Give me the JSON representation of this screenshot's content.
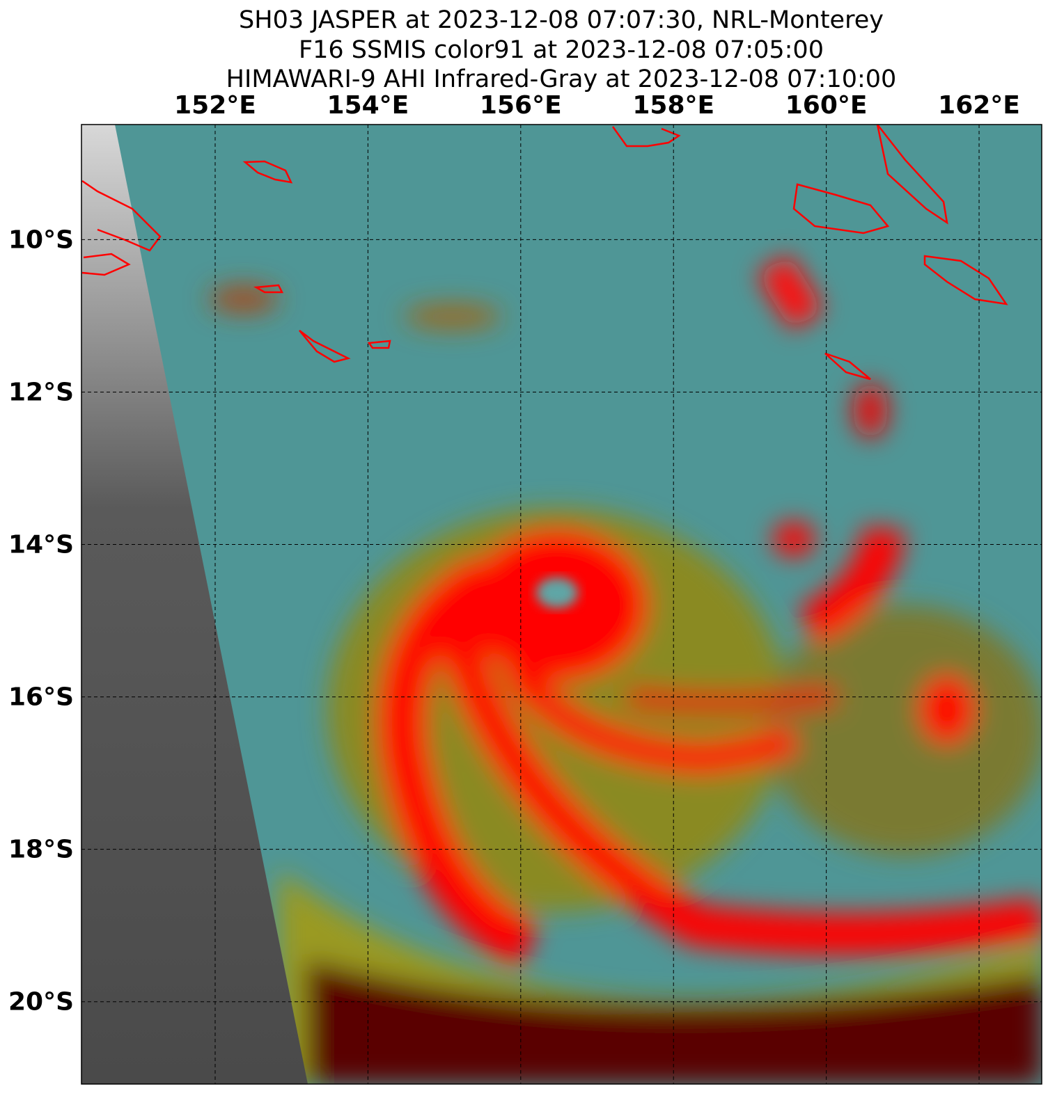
{
  "title": [
    "SH03 JASPER at 2023-12-08 07:07:30, NRL-Monterey",
    "F16 SSMIS color91 at 2023-12-08 07:05:00",
    "HIMAWARI-9 AHI Infrared-Gray at 2023-12-08 07:10:00"
  ],
  "map": {
    "xlim": [
      150.25,
      162.82
    ],
    "ylim": [
      -21.08,
      -8.49
    ],
    "xticks": [
      {
        "value": 152,
        "label": "152°E"
      },
      {
        "value": 154,
        "label": "154°E"
      },
      {
        "value": 156,
        "label": "156°E"
      },
      {
        "value": 158,
        "label": "158°E"
      },
      {
        "value": 160,
        "label": "160°E"
      },
      {
        "value": 162,
        "label": "162°E"
      }
    ],
    "yticks": [
      {
        "value": -10,
        "label": "10°S"
      },
      {
        "value": -12,
        "label": "12°S"
      },
      {
        "value": -14,
        "label": "14°S"
      },
      {
        "value": -16,
        "label": "16°S"
      },
      {
        "value": -18,
        "label": "18°S"
      },
      {
        "value": -20,
        "label": "20°S"
      }
    ],
    "grid": true
  }
}
